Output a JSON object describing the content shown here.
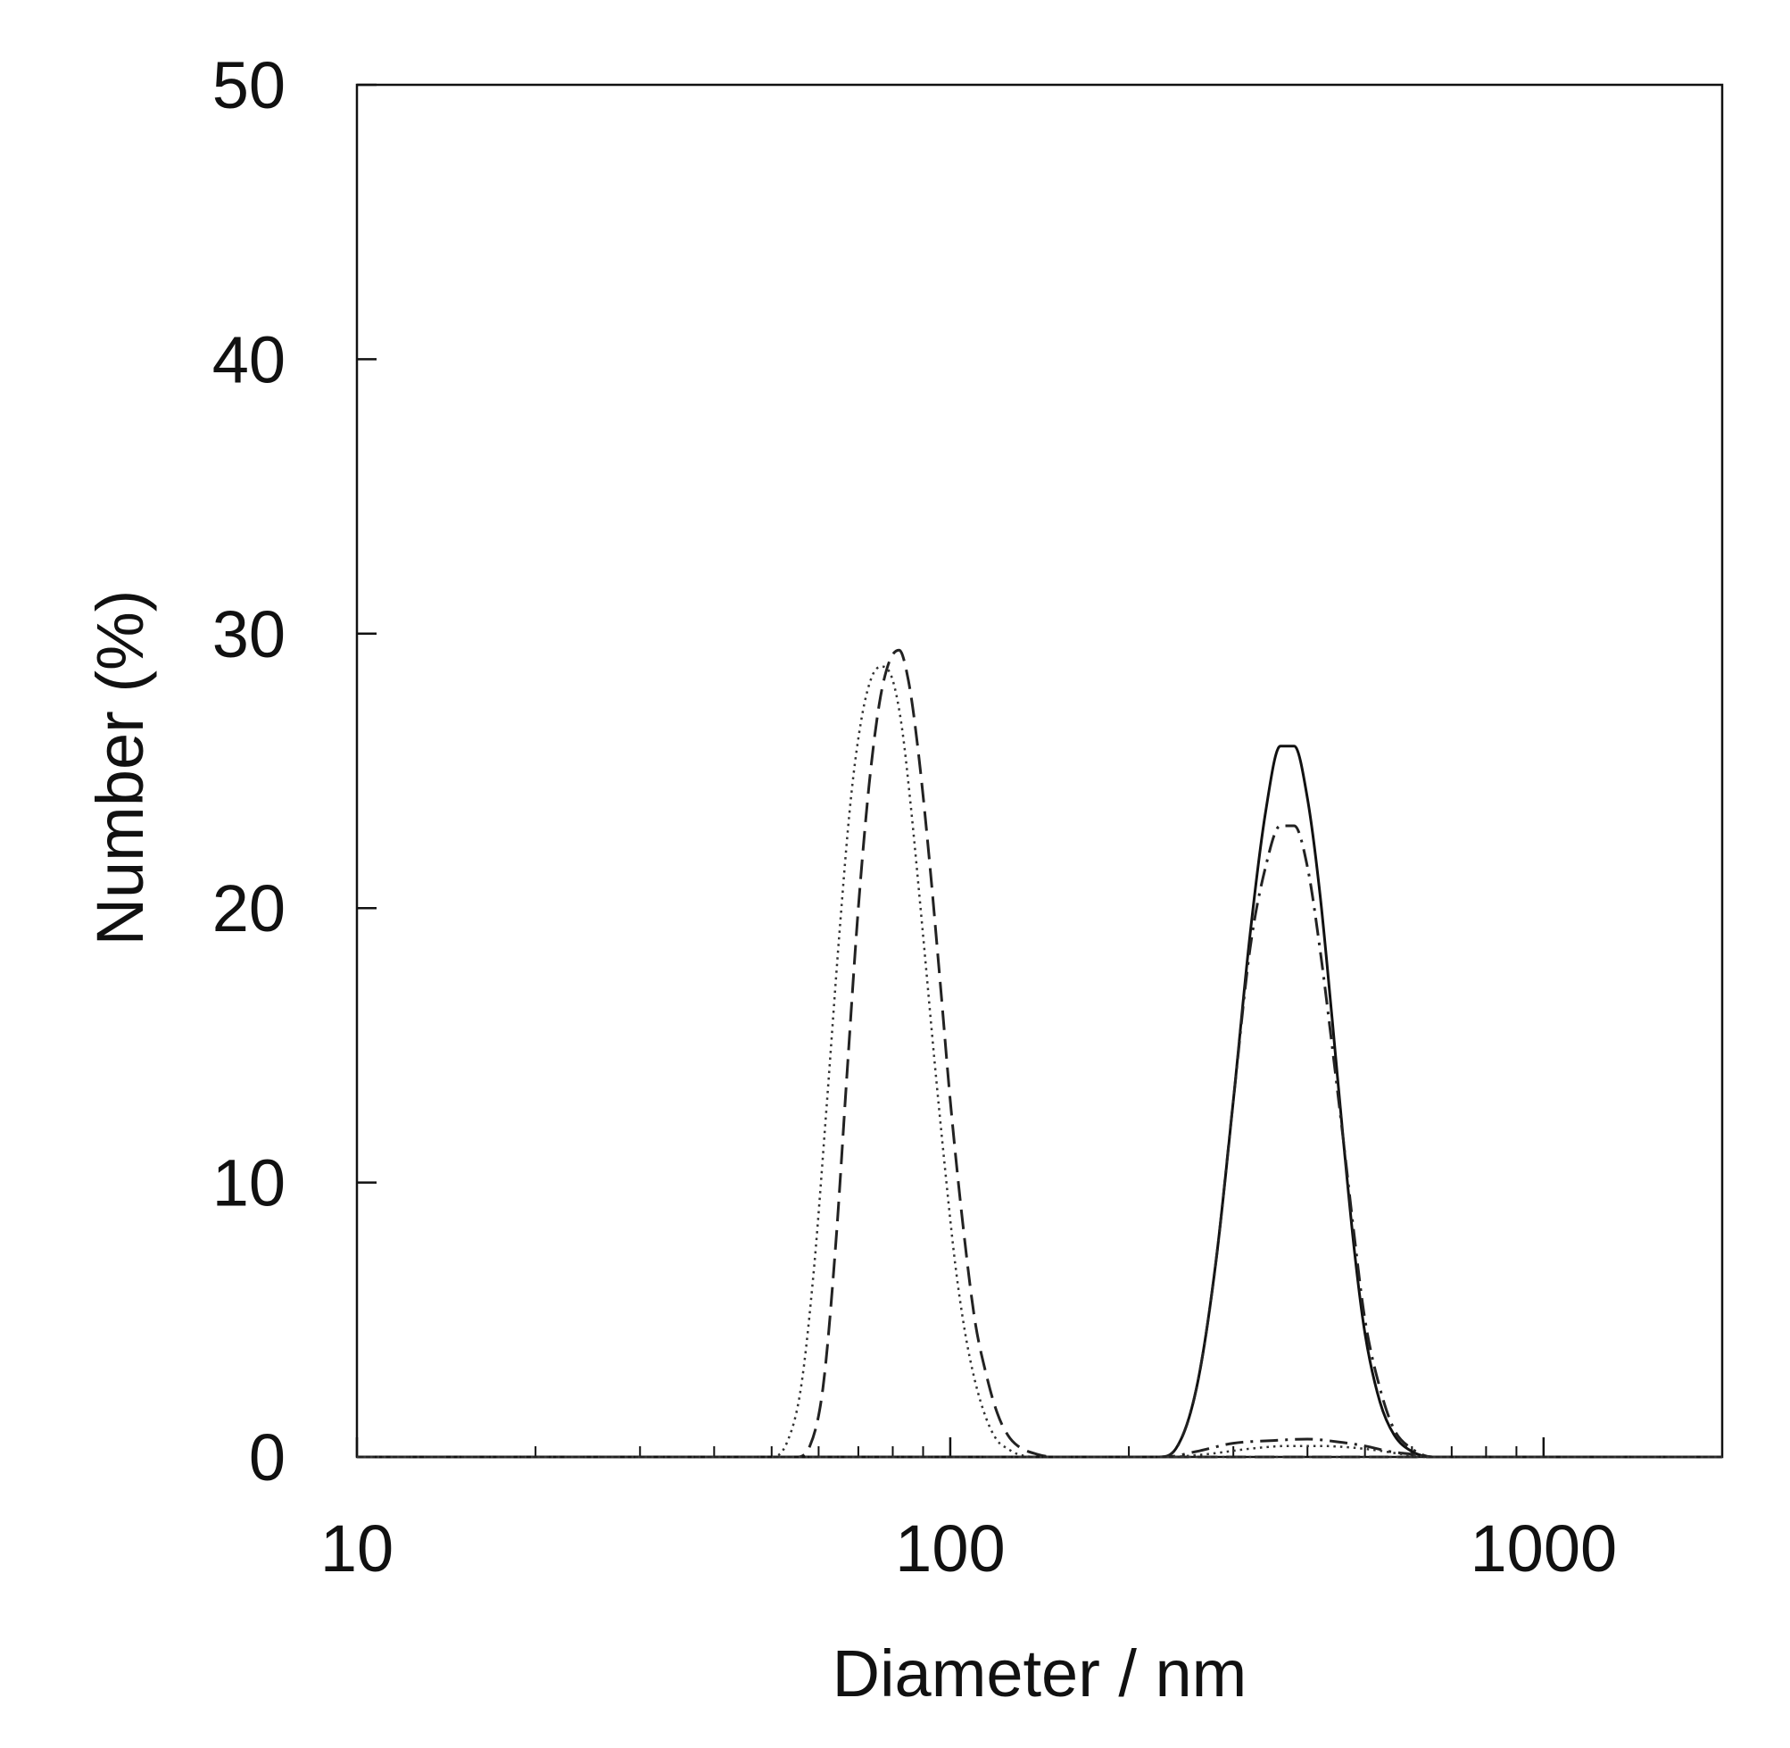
{
  "chart_data": {
    "type": "line",
    "title": "",
    "xlabel": "Diameter / nm",
    "ylabel": "Number (%)",
    "xscale": "log",
    "xlim": [
      10,
      2000
    ],
    "ylim": [
      0,
      50
    ],
    "x_ticks": [
      10,
      100,
      1000
    ],
    "x_tick_labels": [
      "10",
      "100",
      "1000"
    ],
    "y_ticks": [
      0,
      10,
      20,
      30,
      40,
      50
    ],
    "y_tick_labels": [
      "0",
      "10",
      "20",
      "30",
      "40",
      "50"
    ],
    "grid": false,
    "legend": "none",
    "series": [
      {
        "line_style": "dashed",
        "color": "#222222",
        "x": [
          10,
          55,
          58,
          61,
          64,
          67,
          70,
          73,
          76,
          79,
          82,
          85,
          88,
          92,
          96,
          100,
          105,
          110,
          115,
          120,
          125,
          130,
          140,
          150,
          2000
        ],
        "y": [
          0,
          0,
          0.4,
          2.5,
          7.5,
          14.0,
          20.0,
          24.5,
          27.5,
          29.0,
          29.4,
          28.3,
          26.0,
          22.0,
          17.5,
          13.0,
          8.5,
          5.0,
          3.0,
          1.6,
          0.8,
          0.4,
          0.1,
          0,
          0
        ]
      },
      {
        "line_style": "dotted",
        "color": "#333333",
        "x": [
          10,
          50,
          53,
          56,
          59,
          62,
          65,
          68,
          71,
          74,
          77,
          80,
          83,
          86,
          90,
          94,
          98,
          102,
          106,
          110,
          115,
          120,
          125,
          130,
          140,
          2000
        ],
        "y": [
          0,
          0,
          0.5,
          2.5,
          7.0,
          13.0,
          19.0,
          24.0,
          27.0,
          28.5,
          28.8,
          28.3,
          26.5,
          23.5,
          19.0,
          14.5,
          10.5,
          7.0,
          4.5,
          2.8,
          1.4,
          0.6,
          0.3,
          0.1,
          0,
          0
        ]
      },
      {
        "line_style": "solid",
        "color": "#111111",
        "x": [
          10,
          225,
          240,
          260,
          280,
          300,
          320,
          340,
          360,
          380,
          400,
          420,
          440,
          460,
          480,
          500,
          530,
          560,
          600,
          650,
          2000
        ],
        "y": [
          0,
          0,
          0.3,
          2.5,
          7.0,
          13.0,
          19.0,
          23.5,
          25.9,
          25.9,
          24.0,
          20.5,
          16.0,
          11.5,
          7.5,
          4.5,
          2.0,
          0.8,
          0.2,
          0,
          0
        ]
      },
      {
        "line_style": "dash-dot",
        "color": "#222222",
        "x": [
          10,
          225,
          240,
          260,
          280,
          300,
          320,
          340,
          360,
          380,
          400,
          420,
          440,
          460,
          480,
          500,
          530,
          560,
          600,
          650,
          2000
        ],
        "y": [
          0,
          0,
          0.3,
          2.5,
          7.0,
          13.0,
          18.5,
          21.5,
          23.0,
          23.0,
          21.5,
          18.5,
          15.0,
          11.5,
          8.0,
          5.0,
          2.5,
          1.0,
          0.3,
          0,
          0
        ]
      },
      {
        "line_style": "dash-dot",
        "color": "#222222",
        "x": [
          10,
          230,
          260,
          300,
          350,
          400,
          450,
          500,
          550,
          600,
          650,
          2000
        ],
        "y": [
          0,
          0,
          0.2,
          0.5,
          0.6,
          0.65,
          0.55,
          0.4,
          0.2,
          0.1,
          0,
          0
        ]
      },
      {
        "line_style": "dotted",
        "color": "#333333",
        "x": [
          10,
          230,
          270,
          320,
          370,
          420,
          470,
          520,
          580,
          650,
          2000
        ],
        "y": [
          0,
          0,
          0.1,
          0.3,
          0.4,
          0.4,
          0.35,
          0.25,
          0.1,
          0,
          0
        ]
      }
    ]
  }
}
